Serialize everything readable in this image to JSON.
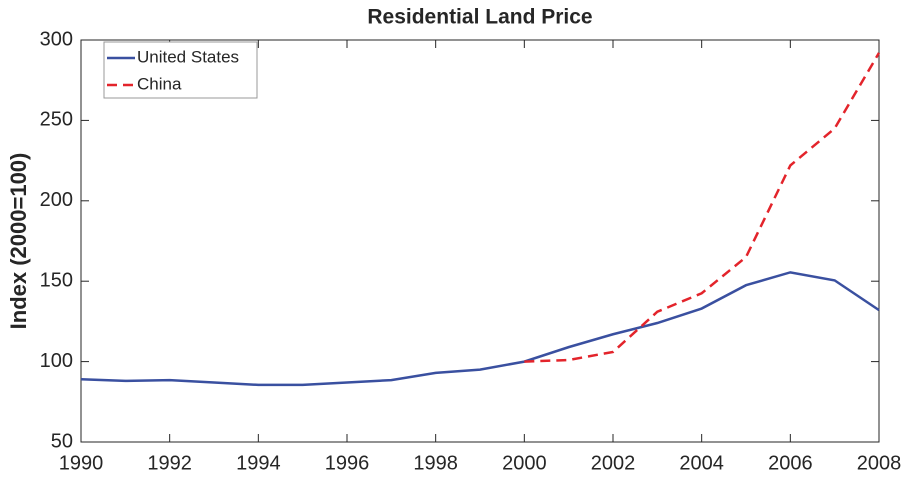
{
  "chart_data": {
    "type": "line",
    "title": "Residential Land Price",
    "ylabel": "Index (2000=100)",
    "x": [
      1990,
      1991,
      1992,
      1993,
      1994,
      1995,
      1996,
      1997,
      1998,
      1999,
      2000,
      2001,
      2002,
      2003,
      2004,
      2005,
      2006,
      2007,
      2008
    ],
    "series": [
      {
        "name": "United States",
        "color": "#3a50a0",
        "dash": "solid",
        "values": [
          89,
          88,
          88.5,
          87,
          85.5,
          85.5,
          87,
          88.5,
          93,
          95,
          100,
          109,
          117,
          124,
          133,
          147.5,
          155.5,
          150.5,
          132
        ]
      },
      {
        "name": "China",
        "color": "#e3242b",
        "dash": "dashed",
        "values": [
          null,
          null,
          null,
          null,
          null,
          null,
          null,
          null,
          null,
          null,
          100,
          101,
          106,
          131,
          142.5,
          165,
          222,
          245,
          292
        ]
      }
    ],
    "xlim": [
      1990,
      2008
    ],
    "xticks": [
      1990,
      1992,
      1994,
      1996,
      1998,
      2000,
      2002,
      2004,
      2006,
      2008
    ],
    "ylim": [
      50,
      300
    ],
    "yticks": [
      50,
      100,
      150,
      200,
      250,
      300
    ],
    "legend": "upper left"
  }
}
